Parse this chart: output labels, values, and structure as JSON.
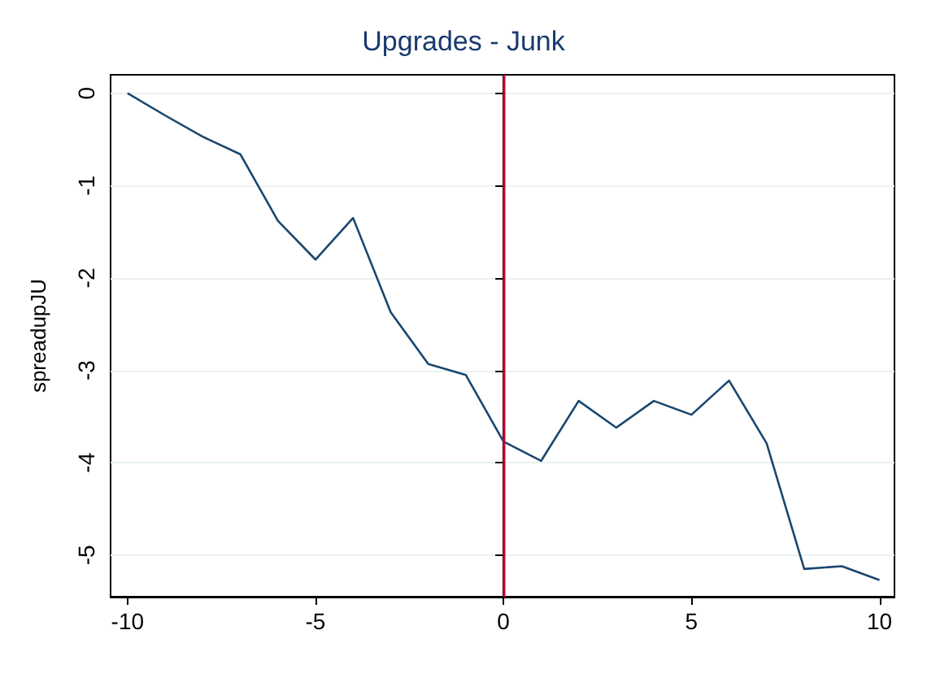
{
  "chart_data": {
    "type": "line",
    "title": "Upgrades - Junk",
    "ylabel": "spreadupJU",
    "x": [
      -10,
      -9,
      -8,
      -7,
      -6,
      -5,
      -4,
      -3,
      -2,
      -1,
      0,
      1,
      2,
      3,
      4,
      5,
      6,
      7,
      8,
      9,
      10
    ],
    "series": [
      {
        "color": "#1a476f",
        "values": [
          0,
          -0.24,
          -0.47,
          -0.66,
          -1.38,
          -1.8,
          -1.35,
          -2.37,
          -2.93,
          -3.05,
          -3.77,
          -3.98,
          -3.33,
          -3.62,
          -3.33,
          -3.48,
          -3.11,
          -3.79,
          -5.15,
          -5.12,
          -5.27
        ]
      }
    ],
    "xlim": [
      -10.45,
      10.4
    ],
    "xticks": [
      -10,
      -5,
      0,
      5,
      10
    ],
    "ylim": [
      -5.45,
      0.2
    ],
    "yticks": [
      -5,
      -4,
      -3,
      -2,
      -1,
      0
    ],
    "ref_lines": [
      {
        "axis": "x",
        "value": 0,
        "color": "#c10534"
      }
    ],
    "grid": "y",
    "marker": "none",
    "line_style": "solid"
  }
}
